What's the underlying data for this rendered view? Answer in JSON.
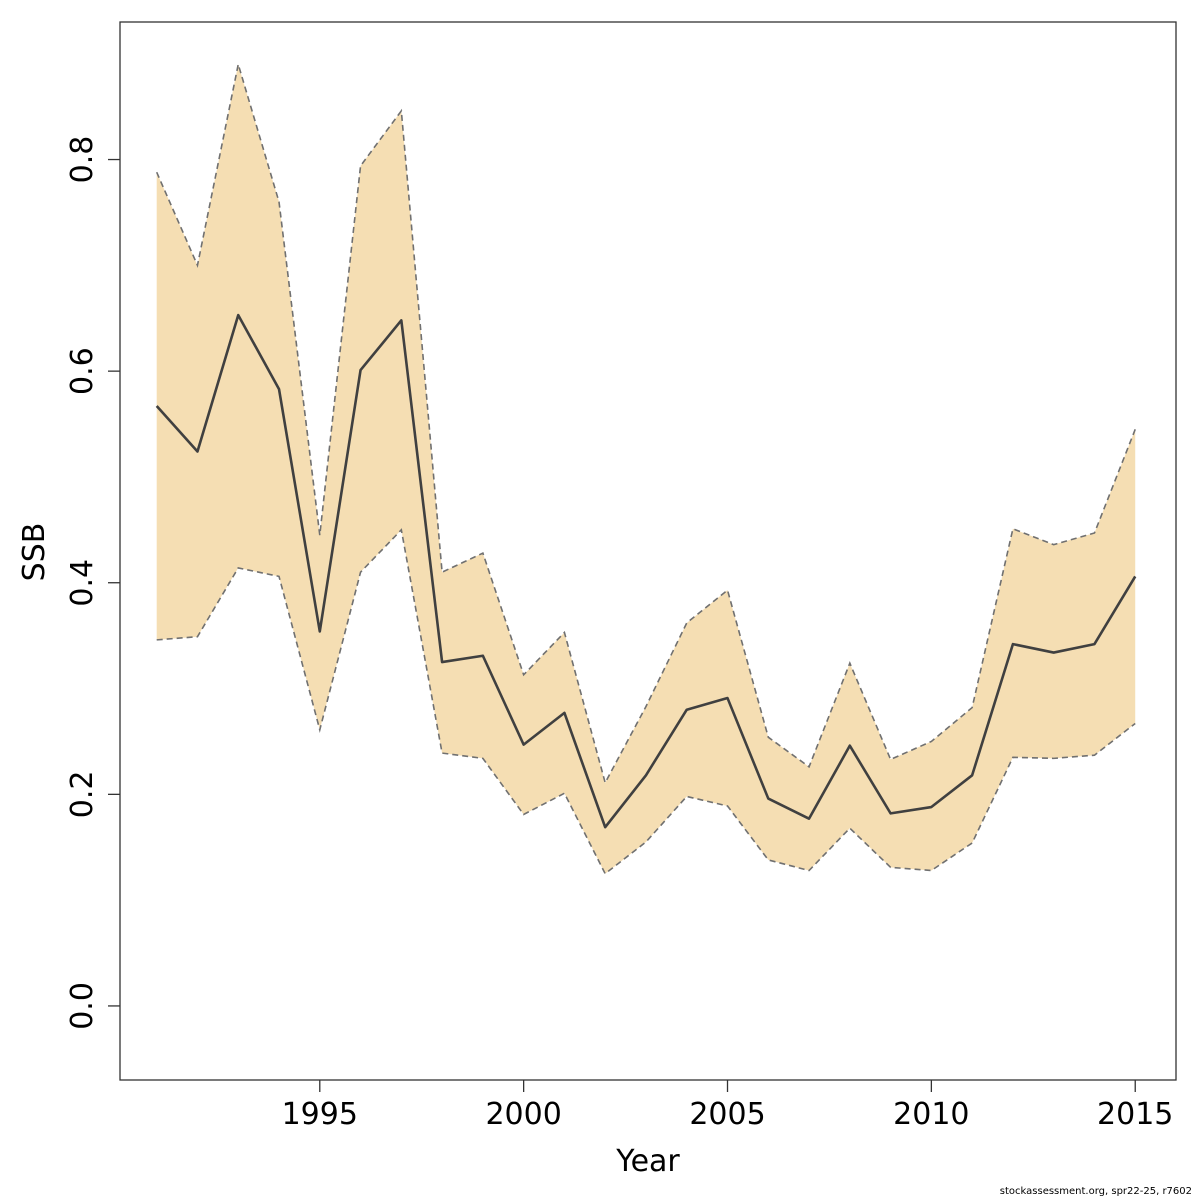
{
  "colors": {
    "band_fill": "#F5DEB3",
    "band_border": "#707070",
    "mean_line": "#404040",
    "axis": "#333333"
  },
  "footnote": "stockassessment.org, spr22-25, r7602",
  "chart_data": {
    "type": "line",
    "title": "",
    "xlabel": "Year",
    "ylabel": "SSB",
    "xlim": [
      1990.1,
      2016
    ],
    "ylim": [
      -0.07,
      0.93
    ],
    "x_ticks": [
      1995,
      2000,
      2005,
      2010,
      2015
    ],
    "x_tick_labels": [
      "1995",
      "2000",
      "2005",
      "2010",
      "2015"
    ],
    "y_ticks": [
      0.0,
      0.2,
      0.4,
      0.6,
      0.8
    ],
    "y_tick_labels": [
      "0.0",
      "0.2",
      "0.4",
      "0.6",
      "0.8"
    ],
    "grid": false,
    "legend": "none",
    "x": [
      1991,
      1992,
      1993,
      1994,
      1995,
      1996,
      1997,
      1998,
      1999,
      2000,
      2001,
      2002,
      2003,
      2004,
      2005,
      2006,
      2007,
      2008,
      2009,
      2010,
      2011,
      2012,
      2013,
      2014,
      2015
    ],
    "series": [
      {
        "role": "estimate",
        "values": [
          0.567,
          0.524,
          0.653,
          0.583,
          0.354,
          0.601,
          0.648,
          0.325,
          0.331,
          0.247,
          0.277,
          0.169,
          0.218,
          0.28,
          0.291,
          0.196,
          0.177,
          0.246,
          0.182,
          0.188,
          0.218,
          0.342,
          0.334,
          0.342,
          0.406
        ]
      },
      {
        "role": "upper",
        "values": [
          0.788,
          0.7,
          0.89,
          0.76,
          0.445,
          0.794,
          0.846,
          0.41,
          0.428,
          0.313,
          0.353,
          0.211,
          0.283,
          0.362,
          0.393,
          0.254,
          0.226,
          0.324,
          0.233,
          0.25,
          0.282,
          0.451,
          0.436,
          0.447,
          0.545
        ]
      },
      {
        "role": "lower",
        "values": [
          0.346,
          0.349,
          0.414,
          0.406,
          0.261,
          0.41,
          0.45,
          0.239,
          0.234,
          0.181,
          0.201,
          0.125,
          0.155,
          0.198,
          0.189,
          0.138,
          0.128,
          0.168,
          0.131,
          0.128,
          0.154,
          0.235,
          0.234,
          0.237,
          0.267
        ]
      }
    ]
  }
}
